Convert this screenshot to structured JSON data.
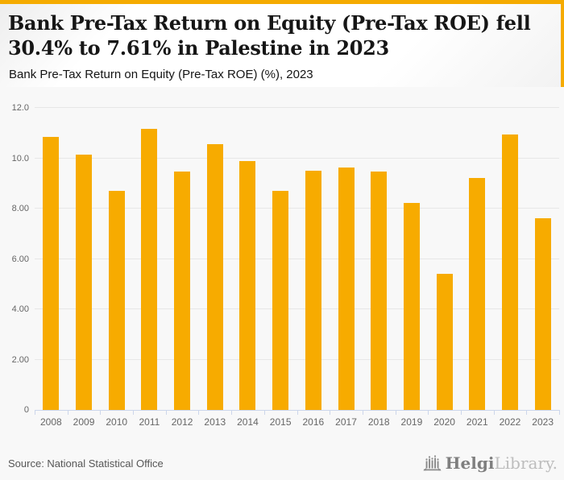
{
  "header": {
    "title_line1": "Bank Pre-Tax Return on Equity (Pre-Tax ROE) fell",
    "title_line2": "30.4% to 7.61% in Palestine in 2023",
    "subtitle": "Bank Pre-Tax Return on Equity (Pre-Tax ROE) (%), 2023"
  },
  "chart_data": {
    "type": "bar",
    "title": "Bank Pre-Tax Return on Equity (Pre-Tax ROE) fell 30.4% to 7.61% in Palestine in 2023",
    "subtitle": "Bank Pre-Tax Return on Equity (Pre-Tax ROE) (%), 2023",
    "categories": [
      "2008",
      "2009",
      "2010",
      "2011",
      "2012",
      "2013",
      "2014",
      "2015",
      "2016",
      "2017",
      "2018",
      "2019",
      "2020",
      "2021",
      "2022",
      "2023"
    ],
    "values": [
      10.85,
      10.13,
      8.72,
      11.16,
      9.46,
      10.57,
      9.88,
      8.72,
      9.52,
      9.62,
      9.48,
      8.22,
      5.4,
      9.21,
      10.93,
      7.61
    ],
    "xlabel": "",
    "ylabel": "",
    "ylim": [
      0,
      12
    ],
    "ytick_labels": [
      "12.0",
      "10.0",
      "8.00",
      "6.00",
      "4.00",
      "2.00",
      "0"
    ],
    "ytick_values": [
      12,
      10,
      8,
      6,
      4,
      2,
      0
    ],
    "grid": true,
    "legend": false,
    "bar_color": "#F7AB00"
  },
  "footer": {
    "source": "Source: National Statistical Office",
    "logo_bold": "Helgi",
    "logo_light": "Library."
  },
  "colors": {
    "accent_gold": "#F5AB00",
    "bar": "#F7AB00",
    "chart_bg": "#f8f8f8",
    "gridline": "#e7e7e7",
    "axis": "#ccd6eb",
    "axis_label": "#666666",
    "title_text": "#161616",
    "source_text": "#565656",
    "logo_dark": "#7f7f7f",
    "logo_light": "#bdbdbd"
  }
}
